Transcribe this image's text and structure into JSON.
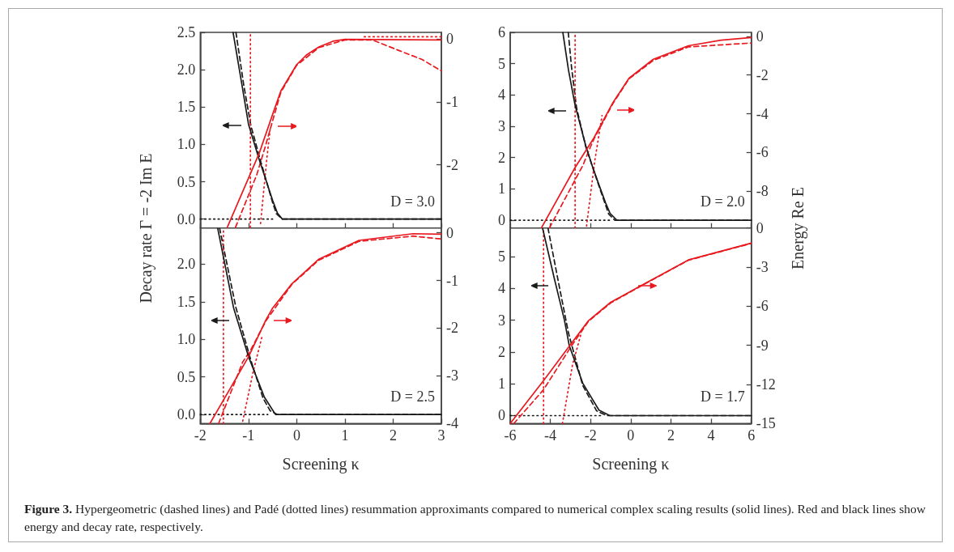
{
  "chart_data": [
    {
      "type": "line",
      "ylabel": "Decay rate Γ = -2 Im E",
      "marker": "none",
      "tick_labels": "y",
      "xlim": [
        -2,
        3
      ],
      "xticks": [
        -2,
        -1,
        0,
        1,
        2,
        3
      ],
      "ylim": [
        -0.12,
        2.5
      ],
      "yticks": [
        {
          "value": 0,
          "label": "0.0"
        },
        {
          "value": 0.5,
          "label": "0.5"
        },
        {
          "value": 1,
          "label": "1.0"
        },
        {
          "value": 1.5,
          "label": "1.5"
        },
        {
          "value": 2,
          "label": "2.0"
        },
        {
          "value": 2.5,
          "label": "2.5"
        }
      ],
      "y2lim": [
        -3,
        0.1
      ],
      "y2ticks": [
        -2,
        -1,
        0
      ],
      "annotations": [
        "D = 3.0",
        "Figure 3.",
        "Hypergeometric (dashed lines) and Padé (dotted lines) resummation approximants compared to numerical complex scaling results (solid lines). Red and black lines show energy and decay rate, respectively."
      ],
      "series": [
        {
          "color": "#1a1a1a",
          "line_style": "solid",
          "x": [
            -1.32,
            -1.15,
            -1.0,
            -0.78,
            -0.5,
            -0.4,
            -0.3,
            3
          ],
          "values": [
            2.5,
            1.85,
            1.27,
            0.8,
            0.25,
            0.08,
            0,
            0
          ]
        },
        {
          "color": "#1a1a1a",
          "line_style": "dashed",
          "x": [
            -1.26,
            -1.1,
            -0.95,
            -0.75,
            -0.5,
            -0.42,
            -0.3,
            3
          ],
          "values": [
            2.5,
            1.8,
            1.25,
            0.78,
            0.22,
            0.07,
            0,
            0
          ]
        },
        {
          "color": "#1a1a1a",
          "line_style": "dotted",
          "x": [
            -2,
            -0.5
          ],
          "values": [
            0,
            0
          ]
        },
        {
          "color": "#e8191f",
          "line_style": "solid",
          "axis": "y2",
          "x": [
            -1.44,
            -0.78,
            -0.5,
            -0.33,
            0,
            0.2,
            0.46,
            0.75,
            1.0,
            3
          ],
          "values": [
            -2.99,
            -1.82,
            -1.2,
            -0.83,
            -0.41,
            -0.26,
            -0.13,
            -0.04,
            -0.01,
            -0.02
          ]
        },
        {
          "color": "#e8191f",
          "line_style": "dashed",
          "axis": "y2",
          "x": [
            -1.27,
            -0.83,
            -0.66,
            -0.33,
            0,
            0.46,
            1.0,
            1.57,
            2.13,
            2.6,
            3
          ],
          "values": [
            -2.99,
            -2.16,
            -1.73,
            -0.85,
            -0.42,
            -0.14,
            -0.02,
            -0.02,
            -0.19,
            -0.33,
            -0.51
          ]
        },
        {
          "color": "#e8191f",
          "line_style": "dotted",
          "axis": "y2",
          "x": [
            -0.96,
            -0.96,
            -0.85,
            -0.75,
            -0.62,
            -0.55,
            0.5,
            1.4,
            3
          ],
          "values": [
            -2.99,
            0.1,
            null,
            -2.93,
            -1.9,
            -1.43,
            null,
            0.03,
            0.03
          ]
        }
      ]
    },
    {
      "type": "line",
      "y2label": "Energy Re E",
      "marker": "none",
      "tick_labels": "y",
      "xlim": [
        -6,
        6
      ],
      "xticks": [
        -6,
        -4,
        -2,
        0,
        2,
        4,
        6
      ],
      "ylim": [
        -0.25,
        6
      ],
      "yticks": [
        0,
        1,
        2,
        3,
        4,
        5,
        6
      ],
      "y2lim": [
        -9.9,
        0.2
      ],
      "y2ticks": [
        -8,
        -6,
        -4,
        -2,
        0
      ],
      "annotations": [
        "D = 2.0"
      ],
      "series": [
        {
          "color": "#1a1a1a",
          "line_style": "solid",
          "x": [
            -3.38,
            -3.1,
            -2.77,
            -2.24,
            -1.9,
            -1.56,
            -1.25,
            -1.03,
            -0.69,
            6
          ],
          "values": [
            6,
            4.8,
            3.67,
            2.38,
            1.7,
            1.09,
            0.55,
            0.22,
            0,
            0
          ]
        },
        {
          "color": "#1a1a1a",
          "line_style": "dashed",
          "x": [
            -3.11,
            -2.95,
            -2.7,
            -2.24,
            -1.56,
            -1.1,
            -0.8,
            6
          ],
          "values": [
            6,
            4.9,
            3.6,
            2.35,
            1.05,
            0.2,
            0,
            0
          ]
        },
        {
          "color": "#1a1a1a",
          "line_style": "dotted",
          "x": [
            -6,
            -1
          ],
          "values": [
            0,
            0
          ]
        },
        {
          "color": "#e8191f",
          "line_style": "solid",
          "axis": "y2",
          "x": [
            -4.45,
            -2.77,
            -1.83,
            -0.89,
            -0.09,
            1.12,
            2.87,
            4.5,
            6
          ],
          "values": [
            -9.9,
            -6.78,
            -5.24,
            -3.43,
            -2.17,
            -1.19,
            -0.49,
            -0.2,
            -0.07
          ]
        },
        {
          "color": "#e8191f",
          "line_style": "dashed",
          "axis": "y2",
          "x": [
            -4.05,
            -2.37,
            -2.1,
            -1.83,
            -0.89,
            -0.09,
            1.12,
            2.87,
            6
          ],
          "values": [
            -9.9,
            -6.64,
            -5.94,
            -5.3,
            -3.48,
            -2.2,
            -1.25,
            -0.55,
            -0.35
          ]
        },
        {
          "color": "#e8191f",
          "line_style": "dotted",
          "axis": "y2",
          "x": [
            -2.77,
            -2.77,
            -2.5,
            -2.2,
            -1.8,
            -1.43
          ],
          "values": [
            -9.9,
            0.2,
            null,
            -9.8,
            -6.5,
            -4.1
          ]
        }
      ]
    },
    {
      "type": "line",
      "xlabel": "Screening κ",
      "marker": "none",
      "xlim": [
        -2,
        3
      ],
      "xticks": [
        -2,
        -1,
        0,
        1,
        2,
        3
      ],
      "ylim": [
        -0.12,
        2.48
      ],
      "yticks": [
        {
          "value": 0,
          "label": "0.0"
        },
        {
          "value": 0.5,
          "label": "0.5"
        },
        {
          "value": 1,
          "label": "1.0"
        },
        {
          "value": 1.5,
          "label": "1.5"
        },
        {
          "value": 2,
          "label": "2.0"
        }
      ],
      "y2lim": [
        -4,
        0.1
      ],
      "y2ticks": [
        -4,
        -3,
        -2,
        -1,
        0
      ],
      "annotations": [
        "D = 2.5"
      ],
      "series": [
        {
          "color": "#1a1a1a",
          "line_style": "solid",
          "x": [
            -1.64,
            -1.31,
            -1.0,
            -0.67,
            -0.44,
            3
          ],
          "values": [
            2.48,
            1.42,
            0.77,
            0.23,
            0,
            0
          ]
        },
        {
          "color": "#1a1a1a",
          "line_style": "dashed",
          "x": [
            -1.6,
            -1.26,
            -0.95,
            -0.7,
            -0.55,
            -0.4,
            3
          ],
          "values": [
            2.48,
            1.42,
            0.72,
            0.22,
            0.05,
            0,
            0
          ]
        },
        {
          "color": "#1a1a1a",
          "line_style": "dotted",
          "x": [
            -2,
            -0.6
          ],
          "values": [
            0,
            0
          ]
        },
        {
          "color": "#e8191f",
          "line_style": "solid",
          "axis": "y2",
          "x": [
            -1.8,
            -1.0,
            -0.64,
            -0.5,
            -0.1,
            0.45,
            1.29,
            2.41,
            3
          ],
          "values": [
            -4,
            -2.6,
            -1.83,
            -1.58,
            -1.07,
            -0.56,
            -0.16,
            -0.02,
            -0.03
          ]
        },
        {
          "color": "#e8191f",
          "line_style": "dashed",
          "axis": "y2",
          "x": [
            -1.62,
            -1.12,
            -0.95,
            -0.64,
            -0.1,
            0.45,
            1.29,
            2.41,
            3
          ],
          "values": [
            -4,
            -2.71,
            -2.45,
            -1.85,
            -1.08,
            -0.58,
            -0.18,
            -0.07,
            -0.13
          ]
        },
        {
          "color": "#e8191f",
          "line_style": "dotted",
          "axis": "y2",
          "x": [
            -1.52,
            -1.52,
            -1.3,
            -1.12,
            -0.9,
            -0.72
          ],
          "values": [
            -4,
            0.1,
            null,
            -3.95,
            -2.9,
            -2.18
          ]
        }
      ]
    },
    {
      "type": "line",
      "xlabel": "Screening κ",
      "marker": "none",
      "xlim": [
        -6,
        6
      ],
      "xticks": [
        -6,
        -4,
        -2,
        0,
        2,
        4,
        6
      ],
      "ylim": [
        -0.25,
        5.9
      ],
      "yticks": [
        0,
        1,
        2,
        3,
        4,
        5
      ],
      "y2lim": [
        -15,
        0
      ],
      "y2ticks": [
        -15,
        -12,
        -9,
        -6,
        -3,
        0
      ],
      "annotations": [
        "D = 1.7"
      ],
      "series": [
        {
          "color": "#1a1a1a",
          "line_style": "solid",
          "x": [
            -4.39,
            -3.8,
            -3.3,
            -3.06,
            -2.39,
            -1.58,
            -1.04,
            6
          ],
          "values": [
            5.9,
            4.3,
            3.0,
            2.2,
            1.02,
            0.17,
            0,
            0
          ]
        },
        {
          "color": "#1a1a1a",
          "line_style": "dashed",
          "x": [
            -4.12,
            -3.6,
            -3.1,
            -2.39,
            -1.7,
            -1.2,
            6
          ],
          "values": [
            5.9,
            4.2,
            2.6,
            0.95,
            0.15,
            0,
            0
          ]
        },
        {
          "color": "#1a1a1a",
          "line_style": "dotted",
          "x": [
            -6,
            -1.5
          ],
          "values": [
            0,
            0
          ]
        },
        {
          "color": "#e8191f",
          "line_style": "solid",
          "axis": "y2",
          "x": [
            -6,
            -4.34,
            -3.06,
            -2.1,
            -1.0,
            0.45,
            2.87,
            6
          ],
          "values": [
            -15,
            -11.7,
            -9.07,
            -7.1,
            -5.7,
            -4.48,
            -2.45,
            -1.16
          ]
        },
        {
          "color": "#e8191f",
          "line_style": "dashed",
          "axis": "y2",
          "x": [
            -5.82,
            -4.34,
            -2.93,
            -2.1,
            -1.0,
            0.45,
            2.87,
            6
          ],
          "values": [
            -15,
            -12.4,
            -9.0,
            -7.15,
            -5.75,
            -4.5,
            -2.47,
            -1.18
          ]
        },
        {
          "color": "#e8191f",
          "line_style": "dotted",
          "axis": "y2",
          "x": [
            -4.34,
            -4.34,
            -3.9,
            -3.4,
            -2.9,
            -2.46
          ],
          "values": [
            -15,
            0,
            null,
            -15,
            -10.5,
            -8.04
          ]
        }
      ]
    }
  ]
}
